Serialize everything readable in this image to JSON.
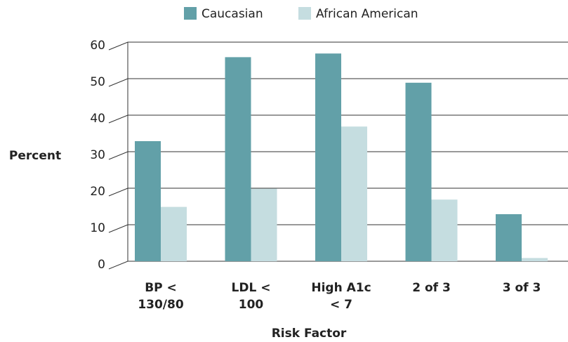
{
  "chart_data": {
    "type": "bar",
    "categories": [
      "BP <\n130/80",
      "LDL <\n100",
      "High A1c\n< 7",
      "2 of 3",
      "3 of 3"
    ],
    "series": [
      {
        "name": "Caucasian",
        "color": "#62a0a8",
        "values": [
          35,
          58,
          59,
          51,
          15
        ]
      },
      {
        "name": "African American",
        "color": "#c5dde0",
        "values": [
          17,
          22,
          39,
          19,
          3
        ]
      }
    ],
    "ylabel": "Percent",
    "xlabel": "Risk Factor",
    "ylim": [
      0,
      60
    ],
    "yticks": [
      0,
      10,
      20,
      30,
      40,
      50,
      60
    ],
    "grid": true
  }
}
